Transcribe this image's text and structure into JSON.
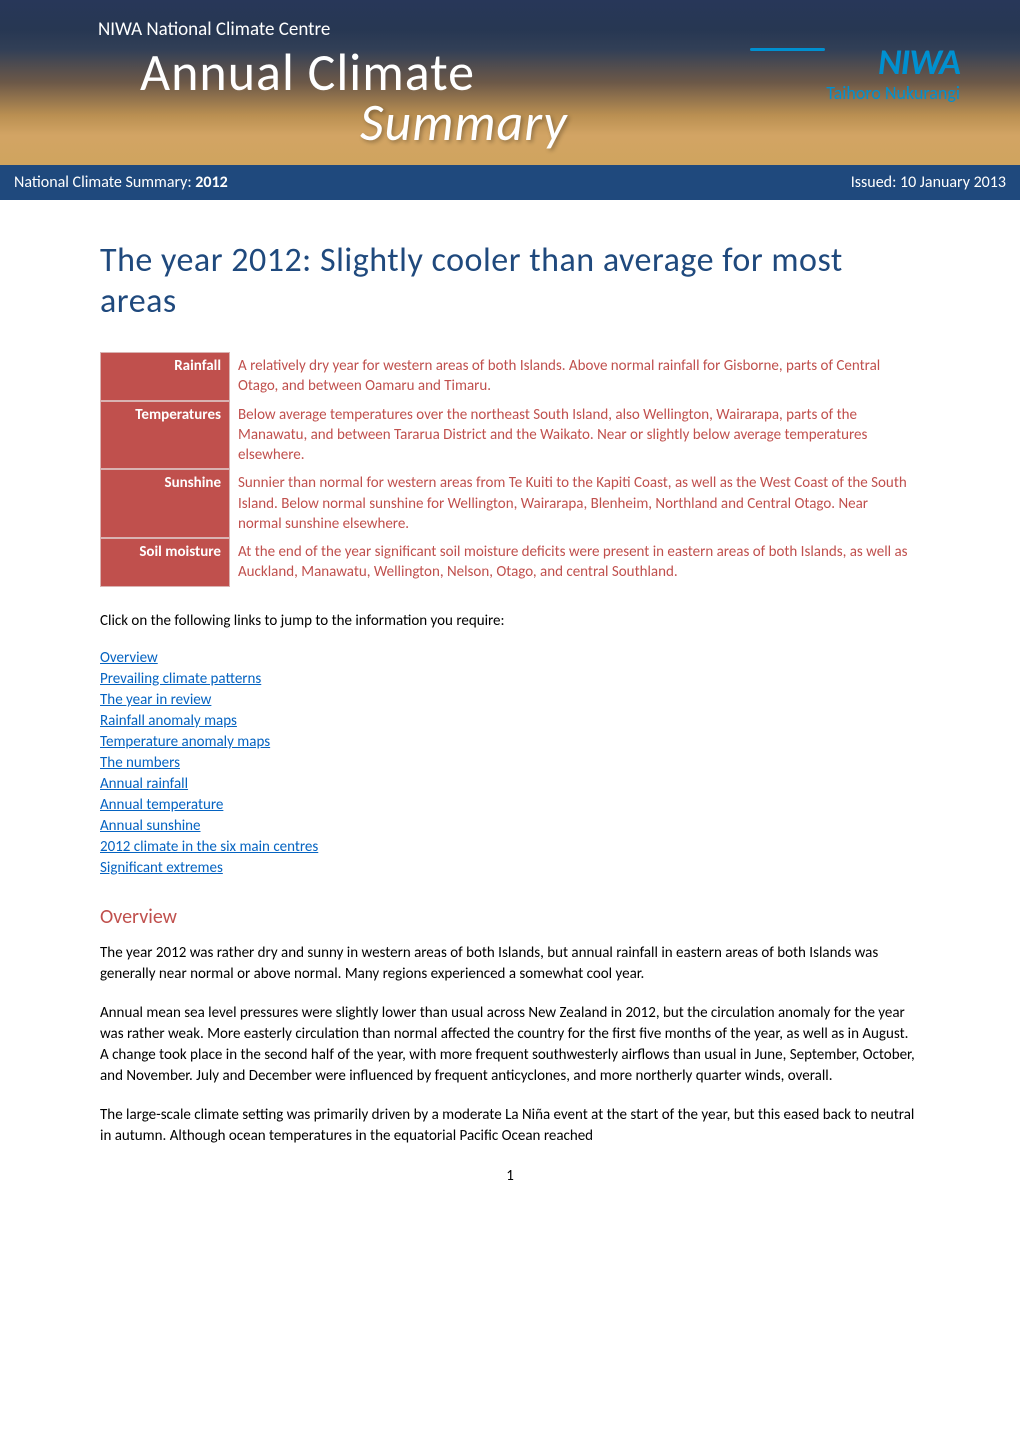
{
  "banner": {
    "subtitle": "NIWA National Climate Centre",
    "title_line1": "Annual Climate",
    "title_line2": "Summary",
    "logo_text": "NIWA",
    "logo_sub": "Taihoro Nukurangi"
  },
  "header_bar": {
    "left_prefix": "National Climate Summary:  ",
    "left_year": "2012",
    "right": "Issued:  10 January 2013"
  },
  "main_title": "The year 2012: Slightly cooler than average for most areas",
  "summary_rows": [
    {
      "label": "Rainfall",
      "value": "A relatively dry year for western areas of both Islands.  Above normal rainfall for Gisborne, parts of Central Otago, and between Oamaru and Timaru."
    },
    {
      "label": "Temperatures",
      "value": "Below average temperatures over the northeast South Island, also Wellington, Wairarapa, parts of the Manawatu, and between Tararua District and the Waikato.  Near or slightly below average temperatures elsewhere."
    },
    {
      "label": "Sunshine",
      "value": "Sunnier than normal for western areas from Te Kuiti to the Kapiti Coast, as well as the West Coast of the South Island. Below normal sunshine for Wellington, Wairarapa, Blenheim, Northland and Central Otago.  Near normal sunshine elsewhere."
    },
    {
      "label": "Soil moisture",
      "value": "At the end of the year significant soil moisture deficits were present in eastern areas of both Islands, as well as Auckland, Manawatu, Wellington, Nelson, Otago, and central Southland."
    }
  ],
  "intro_text": "Click on the following links to jump to the information you require:",
  "links": [
    "Overview",
    "Prevailing climate patterns",
    "The year in review",
    "Rainfall anomaly maps",
    "Temperature anomaly maps",
    "The numbers",
    "Annual rainfall",
    "Annual temperature",
    "Annual sunshine",
    "2012 climate in the six main centres",
    "Significant extremes"
  ],
  "overview": {
    "heading": "Overview",
    "paragraphs": [
      "The year 2012 was rather dry and sunny in western areas of both Islands, but annual rainfall in eastern areas of both Islands was generally near normal or above normal.  Many regions experienced a somewhat cool year.",
      "Annual mean sea level pressures were slightly lower than usual across New Zealand in 2012, but the circulation anomaly for the year was rather weak.  More easterly circulation than normal affected the country for the first five months of the year, as well as in August.  A change took place in the second half of the year, with more frequent southwesterly airflows than usual in June, September, October, and November.  July and December were influenced by frequent anticyclones, and more northerly quarter winds, overall.",
      "The large-scale climate setting was primarily driven by a moderate La Niña event at the start of the year, but this eased back to neutral in autumn.  Although ocean temperatures in the equatorial Pacific Ocean reached"
    ]
  },
  "page_number": "1",
  "colors": {
    "banner_top": "#2a3a5e",
    "banner_bottom": "#cfa55f",
    "header_bar_bg": "#1f497d",
    "header_bar_text": "#ffffff",
    "main_title": "#1f497d",
    "summary_label_bg": "#c0504d",
    "summary_value_text": "#c0504d",
    "link_color": "#0563c1",
    "section_heading": "#c0504d",
    "logo_color": "#0090d0",
    "body_text": "#000000"
  }
}
